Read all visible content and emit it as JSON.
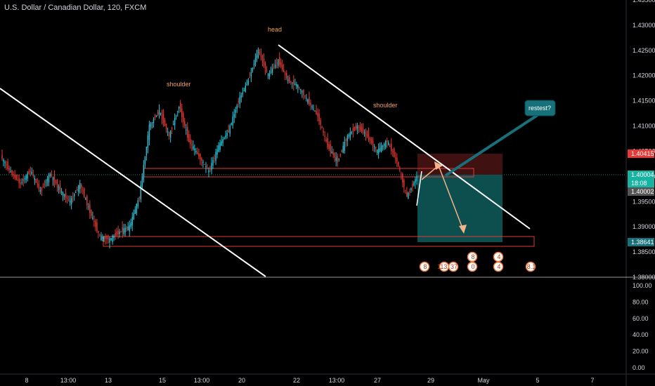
{
  "header": {
    "title": "U.S. Dollar / Canadian Dollar, 120, FXCM"
  },
  "colors": {
    "up": "#26c6da",
    "down": "#e53935",
    "zone": "#e53935",
    "target": "#0f5c5c",
    "stop": "#4a1414",
    "callout": "#17707a",
    "annotation": "#f0a04b",
    "trend": "#ffffff"
  },
  "annotations": {
    "head": "head",
    "shoulder_left": "shoulder",
    "shoulder_right": "shoulder",
    "callout": "restest?"
  },
  "price_tags": [
    {
      "value": "1.40415",
      "bg": "#e53935",
      "fg": "#ffffff"
    },
    {
      "value": "1.40004",
      "bg": "#17b3a3",
      "fg": "#ffffff"
    },
    {
      "value": "18:08",
      "bg": "#17b3a3",
      "fg": "#ffffff"
    },
    {
      "value": "1.40002",
      "bg": "#555555",
      "fg": "#ffffff"
    },
    {
      "value": "1.38641",
      "bg": "#17707a",
      "fg": "#ffffff"
    }
  ],
  "event_badges": [
    "8",
    "113.7",
    "37",
    "0",
    "8",
    "4",
    "4",
    "8.1"
  ],
  "chart_data": [
    {
      "type": "candlestick",
      "title": "U.S. Dollar / Canadian Dollar, 120, FXCM",
      "y_ticks": [
        "1.43500",
        "1.43000",
        "1.42500",
        "1.42000",
        "1.41500",
        "1.41000",
        "1.40500",
        "1.40000",
        "1.39500",
        "1.39000",
        "1.38500",
        "1.38000"
      ],
      "x_ticks": [
        "8",
        "13:00",
        "13",
        "15",
        "13:00",
        "20",
        "22",
        "13:00",
        "27",
        "29",
        "May",
        "5",
        "7"
      ],
      "ylim": [
        1.38,
        1.435
      ],
      "segments": [
        [
          1.404,
          1.4008
        ],
        [
          1.4008,
          1.3985
        ],
        [
          1.3985,
          1.4012
        ],
        [
          1.4012,
          1.397
        ],
        [
          1.397,
          1.4005
        ],
        [
          1.4005,
          1.3972
        ],
        [
          1.3972,
          1.395
        ],
        [
          1.395,
          1.3985
        ],
        [
          1.3985,
          1.393
        ],
        [
          1.393,
          1.388
        ],
        [
          1.388,
          1.3875
        ],
        [
          1.3875,
          1.389
        ],
        [
          1.389,
          1.39
        ],
        [
          1.39,
          1.396
        ],
        [
          1.396,
          1.41
        ],
        [
          1.41,
          1.413
        ],
        [
          1.413,
          1.408
        ],
        [
          1.408,
          1.414
        ],
        [
          1.414,
          1.407
        ],
        [
          1.407,
          1.404
        ],
        [
          1.404,
          1.401
        ],
        [
          1.401,
          1.406
        ],
        [
          1.406,
          1.409
        ],
        [
          1.409,
          1.415
        ],
        [
          1.415,
          1.419
        ],
        [
          1.419,
          1.425
        ],
        [
          1.425,
          1.42
        ],
        [
          1.42,
          1.423
        ],
        [
          1.423,
          1.419
        ],
        [
          1.419,
          1.418
        ],
        [
          1.418,
          1.415
        ],
        [
          1.415,
          1.412
        ],
        [
          1.412,
          1.406
        ],
        [
          1.406,
          1.403
        ],
        [
          1.403,
          1.408
        ],
        [
          1.408,
          1.41
        ],
        [
          1.41,
          1.408
        ],
        [
          1.408,
          1.405
        ],
        [
          1.405,
          1.407
        ],
        [
          1.407,
          1.403
        ],
        [
          1.403,
          1.396
        ],
        [
          1.396,
          1.4
        ]
      ]
    },
    {
      "type": "bar",
      "title": "",
      "y_ticks": [
        "100.00",
        "80.00",
        "60.00",
        "40.00",
        "20.00",
        "0.00"
      ],
      "ylim": [
        0,
        100
      ],
      "values": []
    }
  ]
}
